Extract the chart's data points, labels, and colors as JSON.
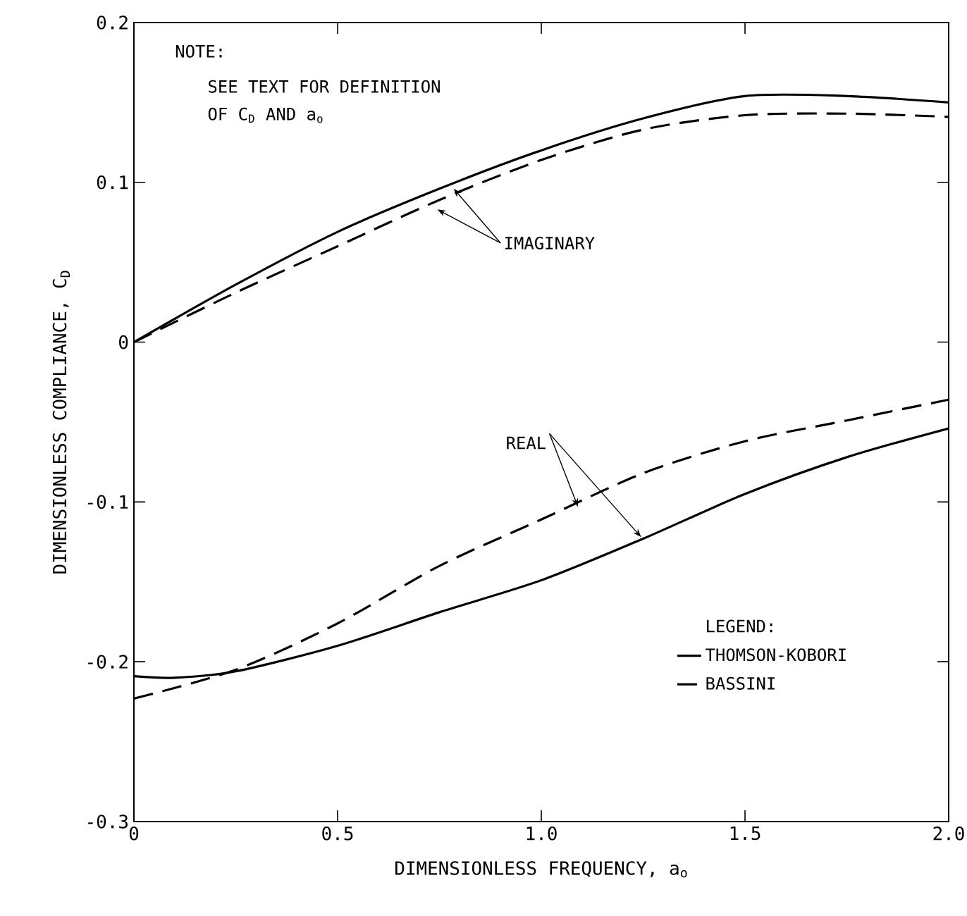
{
  "chart_data": {
    "type": "line",
    "xlabel": "DIMENSIONLESS FREQUENCY, a$_{o}$",
    "ylabel": "DIMENSIONLESS COMPLIANCE, C$_{D}$",
    "legend_title": "LEGEND:",
    "annotations": [
      "NOTE:",
      "SEE TEXT FOR DEFINITION",
      "OF C$_{D}$ AND a$_{o}$",
      {
        "text": "IMAGINARY",
        "x": 0.785,
        "y": 0.096
      },
      {
        "text": "REAL",
        "x": 1.245,
        "y": -0.122
      }
    ],
    "x": [
      0,
      0.25,
      0.5,
      0.75,
      1.0,
      1.25,
      1.5,
      1.75,
      2.0
    ],
    "series": [
      {
        "name": "THOMSON-KOBORI",
        "color": "#000000",
        "line_style": "solid",
        "values": [
          0,
          0.036,
          0.069,
          0.096,
          0.12,
          0.14,
          0.154,
          0.154,
          0.15
        ]
      },
      {
        "name": "BASSINI",
        "color": "#000000",
        "line_style": "dashed",
        "values": [
          0,
          0.031,
          0.06,
          0.089,
          0.114,
          0.133,
          0.142,
          0.143,
          0.141
        ]
      },
      {
        "color": "#000000",
        "line_style": "solid",
        "x": [
          0,
          0.1,
          0.25,
          0.5,
          0.75,
          1.0,
          1.25,
          1.5,
          1.75,
          2.0
        ],
        "values": [
          -0.209,
          -0.21,
          -0.206,
          -0.19,
          -0.169,
          -0.149,
          -0.123,
          -0.095,
          -0.072,
          -0.054
        ]
      },
      {
        "color": "#000000",
        "line_style": "dashed",
        "values": [
          -0.223,
          -0.205,
          -0.176,
          -0.14,
          -0.111,
          -0.082,
          -0.062,
          -0.049,
          -0.036
        ]
      }
    ],
    "xlim": [
      0,
      2.0
    ],
    "ylim": [
      -0.3,
      0.2
    ],
    "xticks": [
      0,
      0.5,
      {
        "value": 1.0,
        "label": "1.0"
      },
      1.5,
      {
        "value": 2.0,
        "label": "2.0"
      }
    ],
    "yticks": [
      -0.3,
      -0.2,
      -0.1,
      0,
      0.1,
      0.2
    ],
    "grid": false,
    "legend": "bottom right",
    "marker": "none"
  }
}
